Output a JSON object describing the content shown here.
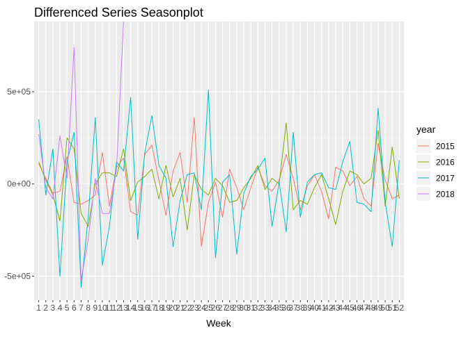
{
  "chart_data": {
    "type": "line",
    "title": "Differenced Series Seasonplot",
    "xlabel": "Week",
    "ylabel": "",
    "x": [
      1,
      2,
      3,
      4,
      5,
      6,
      7,
      8,
      9,
      10,
      11,
      12,
      13,
      14,
      15,
      16,
      17,
      18,
      19,
      20,
      21,
      22,
      23,
      24,
      25,
      26,
      27,
      28,
      29,
      30,
      31,
      32,
      33,
      34,
      35,
      36,
      37,
      38,
      39,
      40,
      41,
      42,
      43,
      44,
      45,
      46,
      47,
      48,
      49,
      50,
      51,
      52
    ],
    "xlim": [
      0.35,
      52.65
    ],
    "ylim": [
      -630000,
      880000
    ],
    "yticks": [
      -500000,
      0,
      500000
    ],
    "ytick_labels": [
      "-5e+05",
      "0e+00",
      "5e+05"
    ],
    "grid": true,
    "legend": {
      "title": "year",
      "position": "right"
    },
    "colors": {
      "panel": "#ebebeb",
      "grid_major": "#ffffff",
      "grid_minor": "#f5f5f5",
      "tick": "#333333"
    },
    "series": [
      {
        "name": "2015",
        "color": "#f8766d",
        "values": [
          110000,
          30000,
          -50000,
          -40000,
          150000,
          -100000,
          -110000,
          -90000,
          -60000,
          170000,
          -120000,
          90000,
          140000,
          -150000,
          -170000,
          160000,
          210000,
          20000,
          -170000,
          70000,
          170000,
          -100000,
          360000,
          -340000,
          -100000,
          10000,
          -180000,
          80000,
          -20000,
          -140000,
          -20000,
          90000,
          -10000,
          -40000,
          20000,
          160000,
          30000,
          -140000,
          -10000,
          50000,
          -40000,
          -190000,
          90000,
          70000,
          -10000,
          40000,
          -80000,
          -120000,
          220000,
          20000,
          -80000,
          -60000
        ]
      },
      {
        "name": "2016",
        "color": "#7cae00",
        "values": [
          120000,
          20000,
          -60000,
          -200000,
          250000,
          190000,
          -160000,
          -230000,
          0,
          60000,
          60000,
          40000,
          190000,
          -90000,
          10000,
          40000,
          80000,
          -80000,
          100000,
          -70000,
          30000,
          -250000,
          50000,
          -30000,
          -60000,
          30000,
          -10000,
          -100000,
          -90000,
          -20000,
          30000,
          100000,
          -30000,
          30000,
          0,
          330000,
          -140000,
          -90000,
          -110000,
          -20000,
          50000,
          -80000,
          -220000,
          -40000,
          70000,
          50000,
          0,
          30000,
          290000,
          -120000,
          200000,
          -80000
        ]
      },
      {
        "name": "2017",
        "color": "#00bfc4",
        "values": [
          350000,
          -60000,
          190000,
          -500000,
          120000,
          280000,
          -560000,
          -180000,
          360000,
          -440000,
          -230000,
          120000,
          70000,
          470000,
          -300000,
          170000,
          370000,
          100000,
          30000,
          -340000,
          -90000,
          50000,
          60000,
          -140000,
          510000,
          -400000,
          10000,
          50000,
          -380000,
          -50000,
          40000,
          80000,
          140000,
          -230000,
          10000,
          -260000,
          280000,
          -180000,
          10000,
          50000,
          60000,
          -20000,
          -30000,
          120000,
          230000,
          -100000,
          -110000,
          -150000,
          410000,
          -100000,
          -340000,
          130000
        ]
      },
      {
        "name": "2018",
        "color": "#c77cff",
        "values": [
          270000,
          -20000,
          -80000,
          260000,
          30000,
          740000,
          -520000,
          -300000,
          30000,
          -160000,
          -160000,
          80000,
          880000,
          null,
          null,
          null,
          null,
          null,
          null,
          null,
          null,
          null,
          null,
          null,
          null,
          null,
          null,
          null,
          null,
          null,
          null,
          null,
          null,
          null,
          null,
          null,
          null,
          null,
          null,
          null,
          null,
          null,
          null,
          null,
          null,
          null,
          null,
          null,
          null,
          null,
          null,
          null
        ]
      }
    ]
  }
}
